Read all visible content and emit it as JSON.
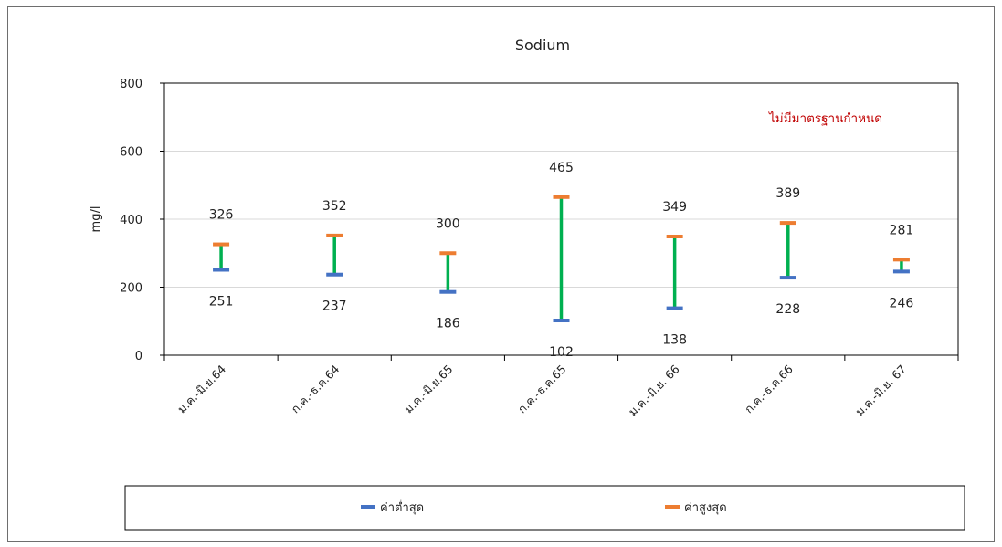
{
  "chart_data": {
    "type": "bar",
    "title": "Sodium",
    "ylabel": "mg/l",
    "xlabel": "",
    "ylim": [
      0,
      800
    ],
    "yticks": [
      0,
      200,
      400,
      600,
      800
    ],
    "grid": true,
    "legend_position": "bottom",
    "categories": [
      "ม.ค.-มิ.ย.64",
      "ก.ค.-ธ.ค.64",
      "ม.ค.-มิ.ย.65",
      "ก.ค.-ธ.ค.65",
      "ม.ค.-มิ.ย. 66",
      "ก.ค.-ธ.ค.66",
      "ม.ค.-มิ.ย. 67"
    ],
    "series": [
      {
        "name": "ค่าต่ำสุด",
        "values": [
          251,
          237,
          186,
          102,
          138,
          228,
          246
        ],
        "color": "#4472C4"
      },
      {
        "name": "ค่าสูงสุด",
        "values": [
          326,
          352,
          300,
          465,
          349,
          389,
          281
        ],
        "color": "#ED7D31"
      }
    ],
    "range_color": "#00B050",
    "annotation": {
      "text": "ไม่มีมาตรฐานกำหนด",
      "color": "#C00000"
    }
  }
}
